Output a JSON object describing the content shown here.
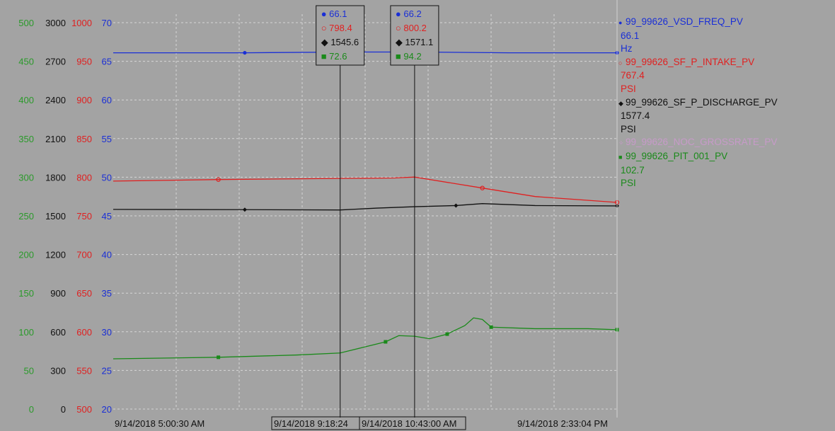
{
  "chart_data": {
    "type": "line",
    "title": "",
    "grid": true,
    "legend_position": "right",
    "y_axes": [
      {
        "color": "#2a9a2a",
        "ticks": [
          "500",
          "450",
          "400",
          "350",
          "300",
          "250",
          "200",
          "150",
          "100",
          "50",
          "0"
        ],
        "range": [
          0,
          500
        ]
      },
      {
        "color": "#111111",
        "ticks": [
          "3000",
          "2700",
          "2400",
          "2100",
          "1800",
          "1500",
          "1200",
          "900",
          "600",
          "300",
          "0"
        ],
        "range": [
          0,
          3000
        ]
      },
      {
        "color": "#e02020",
        "ticks": [
          "1000",
          "950",
          "900",
          "850",
          "800",
          "750",
          "700",
          "650",
          "600",
          "550",
          "500"
        ],
        "range": [
          500,
          1000
        ]
      },
      {
        "color": "#1a2fd6",
        "ticks": [
          "70",
          "65",
          "60",
          "55",
          "50",
          "45",
          "40",
          "35",
          "30",
          "25",
          "20"
        ],
        "range": [
          20,
          70
        ]
      }
    ],
    "x_labels": [
      {
        "text": "9/14/2018 5:00:30 AM",
        "boxed": false
      },
      {
        "text": "9/14/2018 9:18:24",
        "boxed": true
      },
      {
        "text": "9/14/2018 10:43:00 AM",
        "boxed": true
      },
      {
        "text": "9/14/2018 2:33:04 PM",
        "boxed": false
      }
    ],
    "x_range": [
      "9/14/2018 5:00:30 AM",
      "9/14/2018 2:33:04 PM"
    ],
    "series": [
      {
        "name": "99_99626_VSD_FREQ_PV",
        "color": "#1a2fd6",
        "marker": "circle-filled",
        "axis": 3,
        "points": [
          [
            "5:00:30",
            66.1
          ],
          [
            "7:30:00",
            66.1
          ],
          [
            "9:30:00",
            66.2
          ],
          [
            "10:43:00",
            66.2
          ],
          [
            "12:30:00",
            66.1
          ],
          [
            "14:33:04",
            66.1
          ]
        ]
      },
      {
        "name": "99_99626_SF_P_INTAKE_PV",
        "color": "#e02020",
        "marker": "circle-open",
        "axis": 2,
        "points": [
          [
            "5:00:30",
            795
          ],
          [
            "7:00:00",
            797
          ],
          [
            "9:18:24",
            798.4
          ],
          [
            "10:20:00",
            799
          ],
          [
            "10:43:00",
            800.2
          ],
          [
            "12:00:00",
            786
          ],
          [
            "13:00:00",
            775
          ],
          [
            "14:33:04",
            767.4
          ]
        ]
      },
      {
        "name": "99_99626_SF_P_DISCHARGE_PV",
        "color": "#111111",
        "marker": "diamond",
        "axis": 1,
        "points": [
          [
            "5:00:30",
            1550
          ],
          [
            "7:30:00",
            1548
          ],
          [
            "9:18:24",
            1545.6
          ],
          [
            "10:00:00",
            1560
          ],
          [
            "10:43:00",
            1571.1
          ],
          [
            "11:30:00",
            1580
          ],
          [
            "12:00:00",
            1595
          ],
          [
            "13:00:00",
            1580
          ],
          [
            "14:33:04",
            1577.4
          ]
        ]
      },
      {
        "name": "99_99626_NOC_GROSSRATE_PV",
        "color": "#c79ac9",
        "marker": "star",
        "axis": 0,
        "points": []
      },
      {
        "name": "99_99626_PIT_001_PV",
        "color": "#1a8a1a",
        "marker": "square",
        "axis": 0,
        "points": [
          [
            "5:00:30",
            65
          ],
          [
            "7:00:00",
            67
          ],
          [
            "8:30:00",
            70
          ],
          [
            "9:18:24",
            72.6
          ],
          [
            "9:45:00",
            80
          ],
          [
            "10:10:00",
            87
          ],
          [
            "10:25:00",
            95
          ],
          [
            "10:43:00",
            94.2
          ],
          [
            "11:00:00",
            91
          ],
          [
            "11:20:00",
            97
          ],
          [
            "11:40:00",
            108
          ],
          [
            "11:50:00",
            118
          ],
          [
            "12:00:00",
            116
          ],
          [
            "12:10:00",
            106
          ],
          [
            "13:00:00",
            104
          ],
          [
            "14:00:00",
            104
          ],
          [
            "14:33:04",
            102.7
          ]
        ]
      }
    ],
    "cursors": [
      {
        "time": "9/14/2018 9:18:24",
        "values": [
          "66.1",
          "798.4",
          "1545.6",
          "72.6"
        ]
      },
      {
        "time": "9/14/2018 10:43:00 AM",
        "values": [
          "66.2",
          "800.2",
          "1571.1",
          "94.2"
        ]
      }
    ]
  },
  "legend": [
    {
      "name": "99_99626_VSD_FREQ_PV",
      "value": "66.1",
      "unit": "Hz",
      "color": "#1a2fd6",
      "marker": "●"
    },
    {
      "name": "99_99626_SF_P_INTAKE_PV",
      "value": "767.4",
      "unit": "PSI",
      "color": "#e02020",
      "marker": "○"
    },
    {
      "name": "99_99626_SF_P_DISCHARGE_PV",
      "value": "1577.4",
      "unit": "PSI",
      "color": "#111111",
      "marker": "◆"
    },
    {
      "name": "99_99626_NOC_GROSSRATE_PV",
      "value": "",
      "unit": "",
      "color": "#c79ac9",
      "marker": "✧"
    },
    {
      "name": "99_99626_PIT_001_PV",
      "value": "102.7",
      "unit": "PSI",
      "color": "#1a8a1a",
      "marker": "■"
    }
  ],
  "cursor_markers": [
    "●",
    "○",
    "◆",
    "■"
  ]
}
